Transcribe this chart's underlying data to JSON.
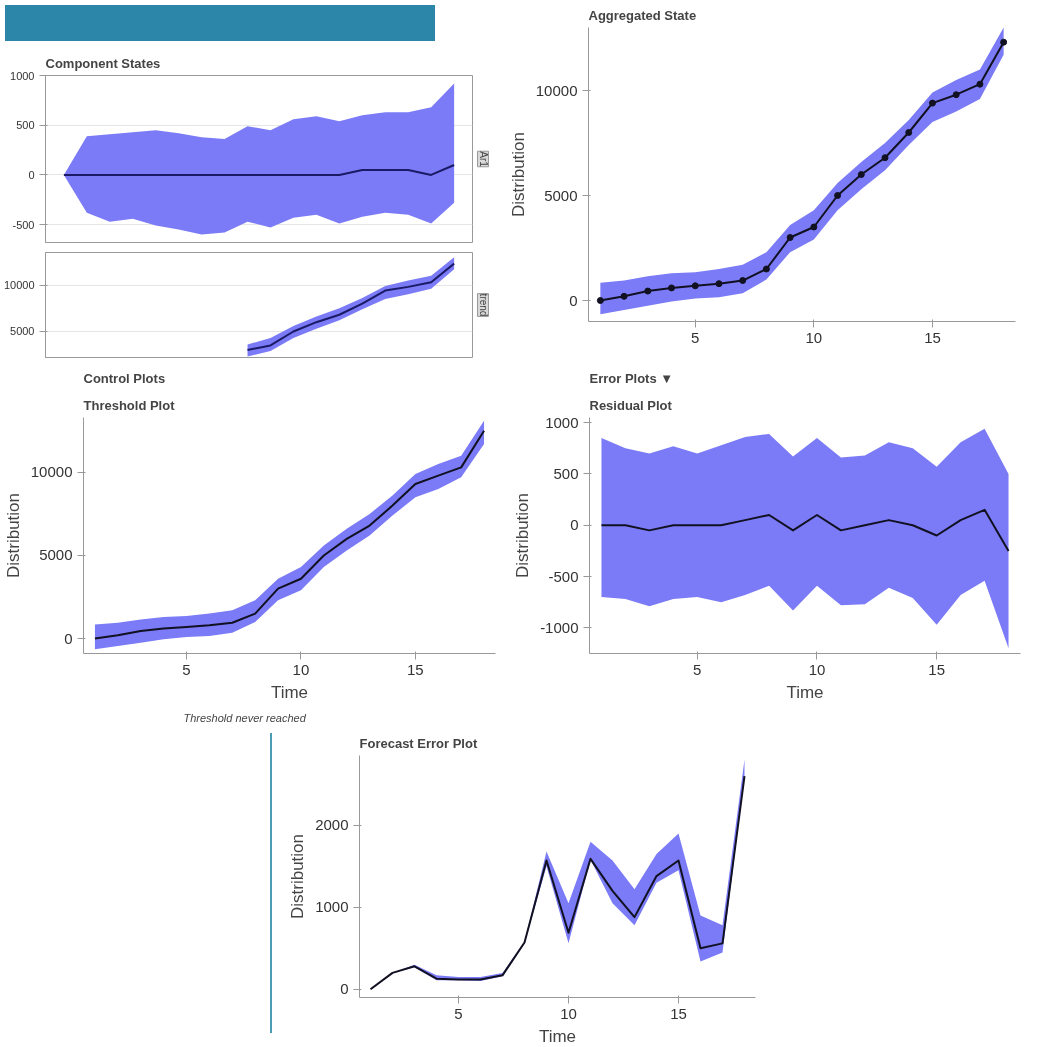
{
  "chart_data": [
    {
      "type": "line",
      "title": "Component States",
      "y2label": "Ar1",
      "categories": [
        null,
        null,
        null,
        null,
        null,
        null,
        null,
        null,
        null,
        null,
        null,
        null,
        null,
        null,
        null,
        null,
        null,
        null
      ],
      "ylim": [
        -680,
        1000
      ],
      "yticks": [
        -500,
        0,
        500,
        1000
      ],
      "grid": "y",
      "tick_labels": "y",
      "series": [
        {
          "color": "#1a1a66",
          "values": [
            0,
            0,
            0,
            0,
            0,
            0,
            0,
            0,
            0,
            0,
            0,
            0,
            0,
            50,
            50,
            50,
            0,
            100
          ],
          "lower": [
            0,
            -380,
            -470,
            -440,
            -510,
            -550,
            -600,
            -580,
            -470,
            -530,
            -430,
            -400,
            -490,
            -420,
            -380,
            -400,
            -490,
            -280
          ],
          "upper": [
            0,
            390,
            410,
            430,
            450,
            420,
            380,
            360,
            490,
            450,
            560,
            590,
            540,
            600,
            630,
            630,
            680,
            920
          ]
        }
      ]
    },
    {
      "type": "line",
      "y2label": "trend",
      "categories": [
        null,
        null,
        null,
        null,
        null,
        null,
        null,
        null,
        null,
        null,
        null,
        null,
        null,
        null,
        null,
        null,
        null,
        null
      ],
      "ylim": [
        2200,
        13500
      ],
      "yticks": [
        5000,
        10000
      ],
      "grid": "y",
      "tick_labels": "y",
      "series": [
        {
          "color": "#1a1a66",
          "values": [
            null,
            null,
            null,
            null,
            null,
            null,
            null,
            null,
            3000,
            3500,
            5000,
            6000,
            6800,
            8000,
            9400,
            9800,
            10300,
            12300
          ],
          "lower": [
            null,
            null,
            null,
            null,
            null,
            null,
            null,
            null,
            2300,
            2900,
            4300,
            5300,
            6200,
            7400,
            8500,
            9000,
            9600,
            11700
          ],
          "upper": [
            null,
            null,
            null,
            null,
            null,
            null,
            null,
            null,
            3600,
            4300,
            5600,
            6600,
            7500,
            8600,
            9900,
            10500,
            11000,
            13000
          ]
        }
      ]
    },
    {
      "type": "line",
      "title": "Aggregated State",
      "ylabel": "Distribution",
      "x": [
        1,
        2,
        3,
        4,
        5,
        6,
        7,
        8,
        9,
        10,
        11,
        12,
        13,
        14,
        15,
        16,
        17,
        18
      ],
      "xlim": [
        0.5,
        18.5
      ],
      "ylim": [
        -1000,
        13000
      ],
      "xticks": [
        5,
        10,
        15
      ],
      "yticks": [
        0,
        5000,
        10000
      ],
      "grid": false,
      "marker": "circle",
      "series": [
        {
          "color": "#111122",
          "values": [
            0,
            200,
            450,
            600,
            700,
            800,
            950,
            1500,
            3000,
            3500,
            5000,
            6000,
            6800,
            8000,
            9400,
            9800,
            10300,
            12300
          ],
          "lower": [
            -650,
            -450,
            -250,
            -50,
            100,
            150,
            350,
            1000,
            2300,
            2900,
            4300,
            5300,
            6200,
            7400,
            8500,
            9000,
            9600,
            11700
          ],
          "upper": [
            850,
            950,
            1150,
            1300,
            1350,
            1500,
            1700,
            2300,
            3600,
            4300,
            5600,
            6600,
            7500,
            8600,
            9900,
            10500,
            11000,
            13000
          ]
        }
      ]
    },
    {
      "type": "line",
      "title": "Control Plots",
      "subtitle": "Threshold Plot",
      "xlabel": "Time",
      "ylabel": "Distribution",
      "annotations": [
        "Threshold never reached"
      ],
      "x": [
        1,
        2,
        3,
        4,
        5,
        6,
        7,
        8,
        9,
        10,
        11,
        12,
        13,
        14,
        15,
        16,
        17,
        18
      ],
      "xlim": [
        0.5,
        18.5
      ],
      "ylim": [
        -900,
        13300
      ],
      "xticks": [
        5,
        10,
        15
      ],
      "yticks": [
        0,
        5000,
        10000
      ],
      "grid": false,
      "series": [
        {
          "color": "#111122",
          "values": [
            0,
            200,
            450,
            600,
            700,
            800,
            950,
            1500,
            3000,
            3600,
            5000,
            6000,
            6800,
            8000,
            9300,
            9800,
            10300,
            12500
          ],
          "lower": [
            -650,
            -450,
            -250,
            -50,
            100,
            150,
            350,
            1000,
            2300,
            2900,
            4300,
            5300,
            6200,
            7400,
            8500,
            9000,
            9700,
            11700
          ],
          "upper": [
            850,
            950,
            1150,
            1300,
            1350,
            1500,
            1700,
            2300,
            3600,
            4300,
            5600,
            6600,
            7500,
            8600,
            9900,
            10500,
            11000,
            13100
          ]
        }
      ]
    },
    {
      "type": "line",
      "title": "Error Plots ▼",
      "subtitle": "Residual Plot",
      "xlabel": "Time",
      "ylabel": "Distribution",
      "x": [
        1,
        2,
        3,
        4,
        5,
        6,
        7,
        8,
        9,
        10,
        11,
        12,
        13,
        14,
        15,
        16,
        17,
        18
      ],
      "xlim": [
        0.5,
        18.5
      ],
      "ylim": [
        -1250,
        1050
      ],
      "xticks": [
        5,
        10,
        15
      ],
      "yticks": [
        -1000,
        -500,
        0,
        500,
        1000
      ],
      "grid": false,
      "series": [
        {
          "color": "#111122",
          "values": [
            0,
            0,
            -50,
            0,
            0,
            0,
            50,
            100,
            -50,
            100,
            -50,
            0,
            50,
            0,
            -100,
            50,
            150,
            -250
          ],
          "lower": [
            -700,
            -720,
            -790,
            -720,
            -700,
            -750,
            -680,
            -590,
            -830,
            -590,
            -780,
            -770,
            -610,
            -710,
            -970,
            -680,
            -540,
            -1200
          ],
          "upper": [
            850,
            750,
            700,
            770,
            700,
            780,
            860,
            890,
            670,
            850,
            660,
            680,
            810,
            750,
            570,
            810,
            940,
            500
          ]
        }
      ]
    },
    {
      "type": "line",
      "title": "Forecast Error Plot",
      "xlabel": "Time",
      "ylabel": "Distribution",
      "x": [
        1,
        2,
        3,
        4,
        5,
        6,
        7,
        8,
        9,
        10,
        11,
        12,
        13,
        14,
        15,
        16,
        17,
        18
      ],
      "xlim": [
        0.5,
        18.5
      ],
      "ylim": [
        -100,
        2850
      ],
      "xticks": [
        5,
        10,
        15
      ],
      "yticks": [
        0,
        1000,
        2000
      ],
      "grid": false,
      "series": [
        {
          "color": "#111122",
          "values": [
            0,
            200,
            280,
            130,
            120,
            120,
            170,
            570,
            1570,
            690,
            1590,
            1200,
            880,
            1380,
            1570,
            500,
            560,
            2600
          ],
          "lower": [
            0,
            200,
            270,
            110,
            110,
            100,
            160,
            560,
            1500,
            560,
            1580,
            1050,
            780,
            1300,
            1450,
            340,
            450,
            2600
          ],
          "upper": [
            0,
            200,
            300,
            170,
            150,
            150,
            200,
            580,
            1680,
            1050,
            1800,
            1570,
            1220,
            1650,
            1900,
            900,
            780,
            2800
          ]
        }
      ]
    }
  ]
}
